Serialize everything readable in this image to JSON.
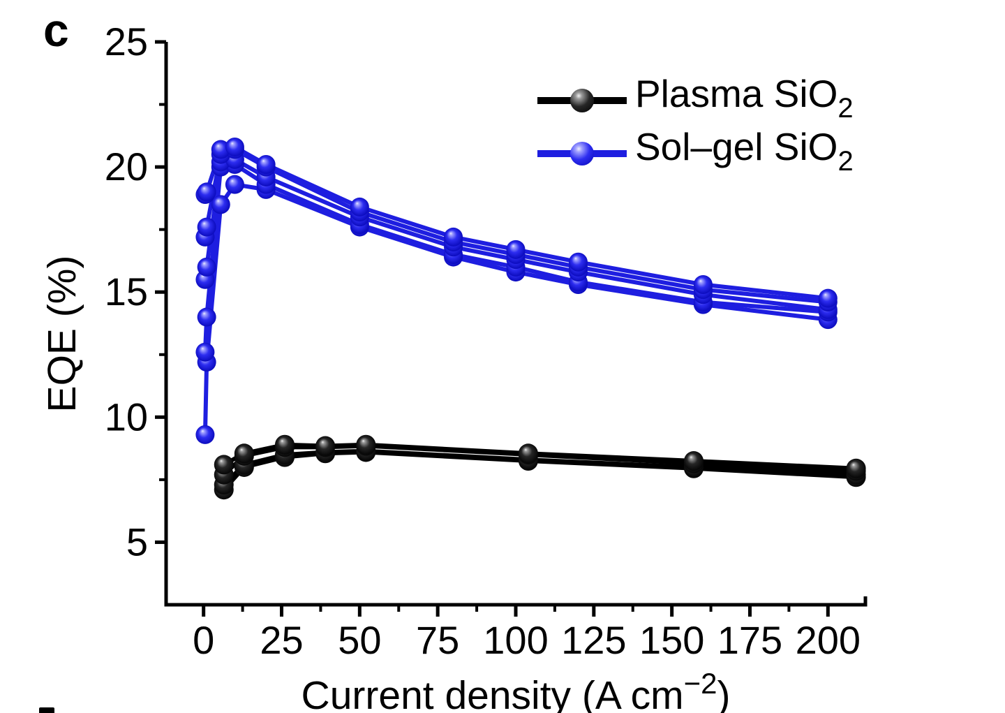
{
  "panel_label": "c",
  "axes": {
    "x": {
      "label_prefix": "Current density (A cm",
      "label_superscript": "−2",
      "label_suffix": ")",
      "range": [
        -12,
        212
      ],
      "major_ticks": [
        0,
        25,
        50,
        75,
        100,
        125,
        150,
        175,
        200
      ],
      "minor_ticks": [
        12.5,
        37.5,
        62.5,
        87.5,
        112.5,
        137.5,
        162.5,
        187.5
      ]
    },
    "y": {
      "label": "EQE (%)",
      "range": [
        2.5,
        25
      ],
      "major_ticks": [
        5,
        10,
        15,
        20,
        25
      ],
      "minor_ticks": [
        7.5,
        12.5,
        17.5,
        22.5
      ]
    }
  },
  "legend": {
    "items": [
      {
        "label": "Plasma SiO",
        "subscript": "2",
        "color": "#000000"
      },
      {
        "label": "Sol–gel SiO",
        "subscript": "2",
        "color": "#1e1ee0"
      }
    ]
  },
  "colors": {
    "plasma": "#000000",
    "solgel": "#1e1ee0",
    "background": "#ffffff"
  },
  "chart_data": {
    "type": "line",
    "title": "",
    "xlabel": "Current density (A cm−2)",
    "ylabel": "EQE (%)",
    "xlim": [
      -12,
      212
    ],
    "ylim": [
      2.5,
      25
    ],
    "grid": false,
    "legend_position": "top-right",
    "marker": "sphere",
    "series": [
      {
        "name": "Plasma SiO2",
        "group": "plasma",
        "color": "#000000",
        "x": [
          6.5,
          13,
          26,
          39,
          52,
          104,
          157,
          209
        ],
        "y": [
          7.1,
          8.0,
          8.4,
          8.55,
          8.6,
          8.25,
          7.95,
          7.6
        ]
      },
      {
        "name": "Plasma SiO2",
        "group": "plasma",
        "color": "#000000",
        "x": [
          6.5,
          13,
          26,
          39,
          52,
          104,
          157,
          209
        ],
        "y": [
          7.3,
          8.1,
          8.5,
          8.6,
          8.65,
          8.3,
          8.0,
          7.7
        ]
      },
      {
        "name": "Plasma SiO2",
        "group": "plasma",
        "color": "#000000",
        "x": [
          6.5,
          13,
          26,
          39,
          52,
          104,
          157,
          209
        ],
        "y": [
          7.7,
          8.45,
          8.8,
          8.8,
          8.85,
          8.5,
          8.15,
          7.85
        ]
      },
      {
        "name": "Plasma SiO2",
        "group": "plasma",
        "color": "#000000",
        "x": [
          6.5,
          13,
          26,
          39,
          52,
          104,
          157,
          209
        ],
        "y": [
          8.1,
          8.55,
          8.9,
          8.85,
          8.9,
          8.55,
          8.25,
          7.95
        ]
      },
      {
        "name": "Sol–gel SiO2",
        "group": "solgel",
        "color": "#1e1ee0",
        "x": [
          0.5,
          1,
          5.5,
          10,
          20,
          50,
          80,
          100,
          120,
          160,
          200
        ],
        "y": [
          9.3,
          12.2,
          18.5,
          19.3,
          19.1,
          17.6,
          16.4,
          15.8,
          15.3,
          14.5,
          13.9
        ]
      },
      {
        "name": "Sol–gel SiO2",
        "group": "solgel",
        "color": "#1e1ee0",
        "x": [
          0.5,
          1,
          5.5,
          10,
          20,
          50,
          80,
          100,
          120,
          160,
          200
        ],
        "y": [
          12.6,
          14.0,
          20.0,
          20.1,
          19.3,
          17.7,
          16.5,
          16.0,
          15.4,
          14.6,
          14.2
        ]
      },
      {
        "name": "Sol–gel SiO2",
        "group": "solgel",
        "color": "#1e1ee0",
        "x": [
          0.5,
          1,
          5.5,
          10,
          20,
          50,
          80,
          100,
          120,
          160,
          200
        ],
        "y": [
          15.5,
          16.0,
          20.2,
          20.3,
          19.6,
          18.0,
          16.8,
          16.3,
          15.8,
          14.9,
          14.3
        ]
      },
      {
        "name": "Sol–gel SiO2",
        "group": "solgel",
        "color": "#1e1ee0",
        "x": [
          0.5,
          1,
          5.5,
          10,
          20,
          50,
          80,
          100,
          120,
          160,
          200
        ],
        "y": [
          17.2,
          17.6,
          20.5,
          20.7,
          20.0,
          18.2,
          17.0,
          16.5,
          16.0,
          15.1,
          14.6
        ]
      },
      {
        "name": "Sol–gel SiO2",
        "group": "solgel",
        "color": "#1e1ee0",
        "x": [
          0.5,
          1,
          5.5,
          10,
          20,
          50,
          80,
          100,
          120,
          160,
          200
        ],
        "y": [
          18.9,
          19.0,
          20.7,
          20.8,
          20.1,
          18.4,
          17.2,
          16.7,
          16.2,
          15.3,
          14.75
        ]
      }
    ]
  }
}
